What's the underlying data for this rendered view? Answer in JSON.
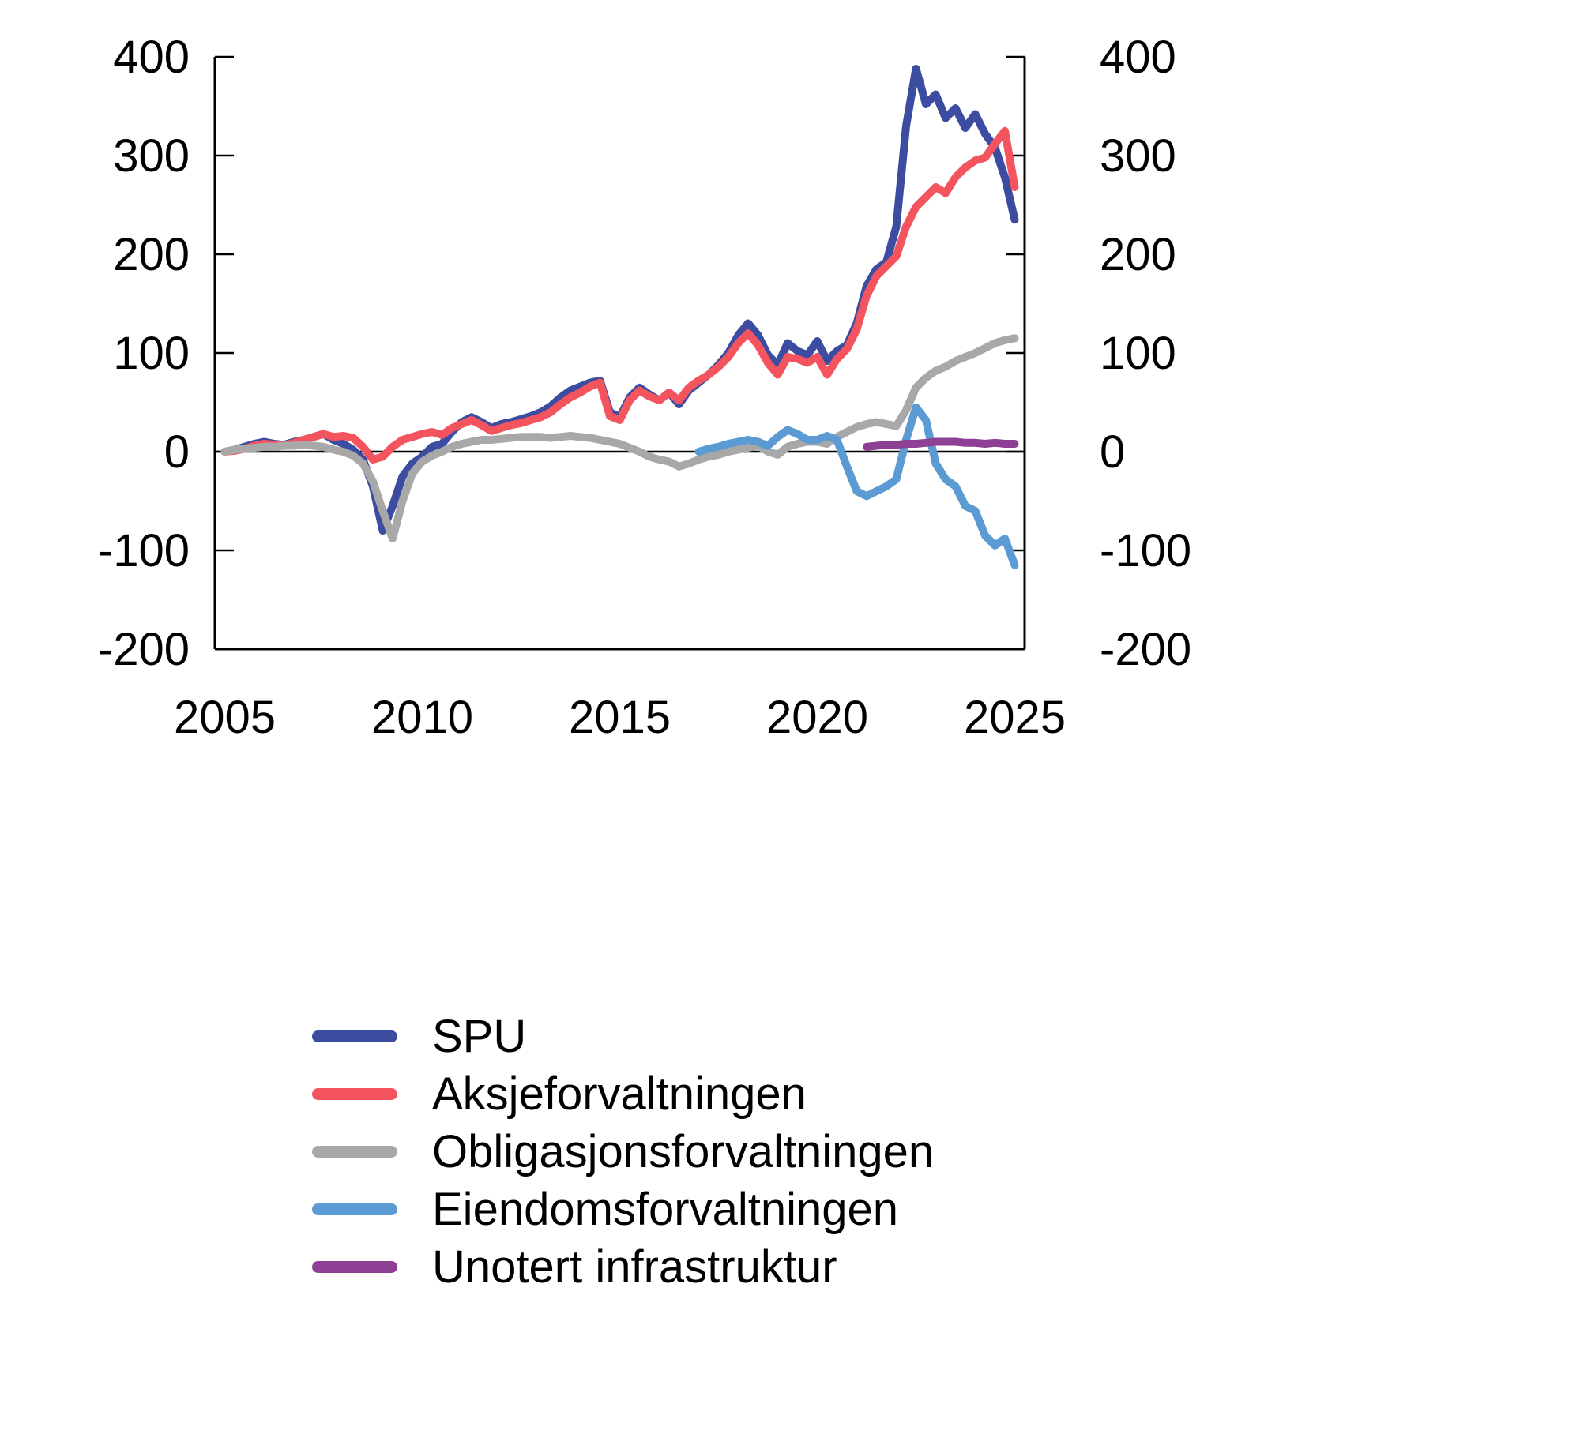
{
  "page": {
    "background": "#ffffff",
    "text_color": "#000000"
  },
  "chart_data": {
    "type": "line",
    "title": "",
    "xlabel": "",
    "ylabel": "",
    "xlim": [
      2004.75,
      2025.25
    ],
    "ylim": [
      -200,
      400
    ],
    "yticks": [
      400,
      300,
      200,
      100,
      0,
      -100,
      -200
    ],
    "xticks": [
      2005,
      2010,
      2015,
      2020,
      2025
    ],
    "grid": false,
    "legend_position": "bottom-left",
    "axis_color": "#000000",
    "x": [
      2005,
      2005.25,
      2005.5,
      2005.75,
      2006,
      2006.25,
      2006.5,
      2006.75,
      2007,
      2007.25,
      2007.5,
      2007.75,
      2008,
      2008.25,
      2008.5,
      2008.75,
      2009,
      2009.25,
      2009.5,
      2009.75,
      2010,
      2010.25,
      2010.5,
      2010.75,
      2011,
      2011.25,
      2011.5,
      2011.75,
      2012,
      2012.25,
      2012.5,
      2012.75,
      2013,
      2013.25,
      2013.5,
      2013.75,
      2014,
      2014.25,
      2014.5,
      2014.75,
      2015,
      2015.25,
      2015.5,
      2015.75,
      2016,
      2016.25,
      2016.5,
      2016.75,
      2017,
      2017.25,
      2017.5,
      2017.75,
      2018,
      2018.25,
      2018.5,
      2018.75,
      2019,
      2019.25,
      2019.5,
      2019.75,
      2020,
      2020.25,
      2020.5,
      2020.75,
      2021,
      2021.25,
      2021.5,
      2021.75,
      2022,
      2022.25,
      2022.5,
      2022.75,
      2023,
      2023.25,
      2023.5,
      2023.75,
      2024,
      2024.25,
      2024.5,
      2024.75,
      2025
    ],
    "series": [
      {
        "id": "spu",
        "name": "SPU",
        "color": "#3c4da1",
        "x_start": 0,
        "values": [
          0,
          2,
          5,
          8,
          10,
          8,
          7,
          10,
          12,
          15,
          18,
          12,
          8,
          2,
          -8,
          -35,
          -80,
          -55,
          -25,
          -12,
          -5,
          5,
          8,
          20,
          30,
          35,
          30,
          24,
          28,
          30,
          33,
          36,
          40,
          46,
          55,
          62,
          66,
          70,
          72,
          40,
          35,
          55,
          65,
          58,
          52,
          60,
          48,
          62,
          70,
          78,
          88,
          100,
          118,
          130,
          118,
          98,
          88,
          110,
          102,
          98,
          112,
          92,
          102,
          108,
          130,
          168,
          185,
          192,
          228,
          330,
          388,
          352,
          362,
          338,
          348,
          328,
          342,
          322,
          308,
          278,
          235
        ]
      },
      {
        "id": "aksjeforvaltningen",
        "name": "Aksjeforvaltningen",
        "color": "#f4545e",
        "x_start": 0,
        "values": [
          0,
          1,
          3,
          6,
          8,
          7,
          6,
          9,
          12,
          15,
          18,
          15,
          16,
          14,
          5,
          -8,
          -5,
          5,
          12,
          15,
          18,
          20,
          17,
          24,
          28,
          32,
          27,
          21,
          24,
          27,
          29,
          32,
          35,
          40,
          48,
          55,
          60,
          66,
          70,
          36,
          32,
          52,
          62,
          56,
          52,
          60,
          52,
          65,
          72,
          78,
          86,
          96,
          110,
          120,
          108,
          90,
          78,
          96,
          94,
          90,
          96,
          78,
          94,
          104,
          124,
          158,
          178,
          188,
          198,
          228,
          248,
          258,
          268,
          262,
          278,
          288,
          295,
          298,
          312,
          325,
          268
        ]
      },
      {
        "id": "obligasjonsforvaltningen",
        "name": "Obligasjonsforvaltningen",
        "color": "#a8a8a8",
        "x_start": 0,
        "values": [
          0,
          2,
          3,
          4,
          5,
          5,
          6,
          6,
          7,
          6,
          5,
          2,
          0,
          -4,
          -12,
          -30,
          -60,
          -88,
          -50,
          -22,
          -10,
          -4,
          0,
          5,
          8,
          10,
          12,
          12,
          13,
          14,
          15,
          15,
          15,
          14,
          15,
          16,
          15,
          14,
          12,
          10,
          8,
          4,
          0,
          -5,
          -8,
          -10,
          -15,
          -12,
          -8,
          -5,
          -3,
          0,
          2,
          4,
          6,
          0,
          -3,
          5,
          8,
          10,
          10,
          8,
          15,
          20,
          25,
          28,
          30,
          28,
          26,
          42,
          65,
          75,
          82,
          86,
          92,
          96,
          100,
          105,
          110,
          113,
          115
        ]
      },
      {
        "id": "eiendomsforvaltningen",
        "name": "Eiendomsforvaltningen",
        "color": "#5b9ad2",
        "x_start": 48,
        "values": [
          0,
          3,
          5,
          8,
          10,
          12,
          10,
          6,
          15,
          22,
          18,
          12,
          12,
          16,
          12,
          -15,
          -40,
          -45,
          -40,
          -35,
          -28,
          12,
          45,
          32,
          -12,
          -28,
          -35,
          -55,
          -60,
          -85,
          -95,
          -88,
          -115
        ]
      },
      {
        "id": "unotert-infrastruktur",
        "name": "Unotert infrastruktur",
        "color": "#8d4094",
        "x_start": 65,
        "values": [
          5,
          6,
          7,
          7,
          8,
          8,
          9,
          10,
          10,
          10,
          9,
          9,
          8,
          9,
          8,
          8
        ]
      }
    ]
  }
}
